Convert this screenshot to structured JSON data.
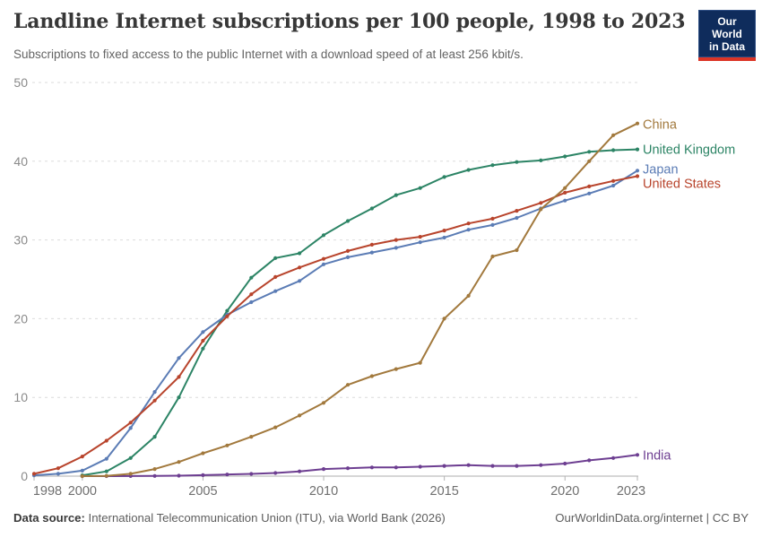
{
  "header": {
    "title": "Landline Internet subscriptions per 100 people, 1998 to 2023",
    "subtitle": "Subscriptions to fixed access to the public Internet with a download speed of at least 256 kbit/s.",
    "logo": {
      "line1": "Our World",
      "line2": "in Data"
    }
  },
  "footer": {
    "source_label": "Data source:",
    "source_text": " International Telecommunication Union (ITU), via World Bank (2026)",
    "link_text": "OurWorldinData.org/internet",
    "license_text": " | CC BY"
  },
  "chart_data": {
    "type": "line",
    "title": "Landline Internet subscriptions per 100 people, 1998 to 2023",
    "xlabel": "",
    "ylabel": "",
    "xlim": [
      1998,
      2023
    ],
    "ylim": [
      0,
      50
    ],
    "xticks": [
      1998,
      2000,
      2005,
      2010,
      2015,
      2020,
      2023
    ],
    "yticks": [
      0,
      10,
      20,
      30,
      40,
      50
    ],
    "grid": "horizontal-dashed",
    "legend": "end-of-line-labels",
    "x": [
      1998,
      1999,
      2000,
      2001,
      2002,
      2003,
      2004,
      2005,
      2006,
      2007,
      2008,
      2009,
      2010,
      2011,
      2012,
      2013,
      2014,
      2015,
      2016,
      2017,
      2018,
      2019,
      2020,
      2021,
      2022,
      2023
    ],
    "series": [
      {
        "name": "China",
        "color": "#A2793D",
        "values": [
          null,
          null,
          0,
          0.03,
          0.3,
          0.9,
          1.8,
          2.9,
          3.9,
          5.0,
          6.2,
          7.7,
          9.3,
          11.6,
          12.7,
          13.6,
          14.4,
          20.0,
          22.9,
          27.9,
          28.7,
          33.9,
          36.6,
          40.0,
          43.3,
          44.8
        ]
      },
      {
        "name": "United Kingdom",
        "color": "#2C8465",
        "values": [
          null,
          null,
          0.1,
          0.6,
          2.3,
          5.0,
          10.0,
          16.2,
          21.0,
          25.2,
          27.7,
          28.3,
          30.6,
          32.4,
          34.0,
          35.7,
          36.6,
          38.0,
          38.9,
          39.5,
          39.9,
          40.1,
          40.6,
          41.2,
          41.4,
          41.5
        ]
      },
      {
        "name": "Japan",
        "color": "#5B7CB5",
        "values": [
          0.1,
          0.3,
          0.7,
          2.2,
          6.1,
          10.7,
          15.0,
          18.3,
          20.5,
          22.1,
          23.5,
          24.8,
          26.9,
          27.8,
          28.4,
          29.0,
          29.7,
          30.3,
          31.3,
          31.9,
          32.8,
          34.0,
          35.0,
          35.9,
          36.9,
          38.8
        ]
      },
      {
        "name": "United States",
        "color": "#B8442C",
        "values": [
          0.3,
          1.0,
          2.5,
          4.5,
          6.8,
          9.6,
          12.6,
          17.2,
          20.3,
          23.1,
          25.3,
          26.5,
          27.6,
          28.6,
          29.4,
          30.0,
          30.4,
          31.2,
          32.1,
          32.7,
          33.7,
          34.7,
          36.0,
          36.8,
          37.5,
          38.1
        ]
      },
      {
        "name": "India",
        "color": "#6D3E91",
        "values": [
          null,
          null,
          0,
          0,
          0.01,
          0.02,
          0.06,
          0.12,
          0.2,
          0.28,
          0.4,
          0.6,
          0.9,
          1.0,
          1.1,
          1.1,
          1.2,
          1.3,
          1.4,
          1.3,
          1.3,
          1.4,
          1.6,
          2.0,
          2.3,
          2.7
        ]
      }
    ]
  }
}
